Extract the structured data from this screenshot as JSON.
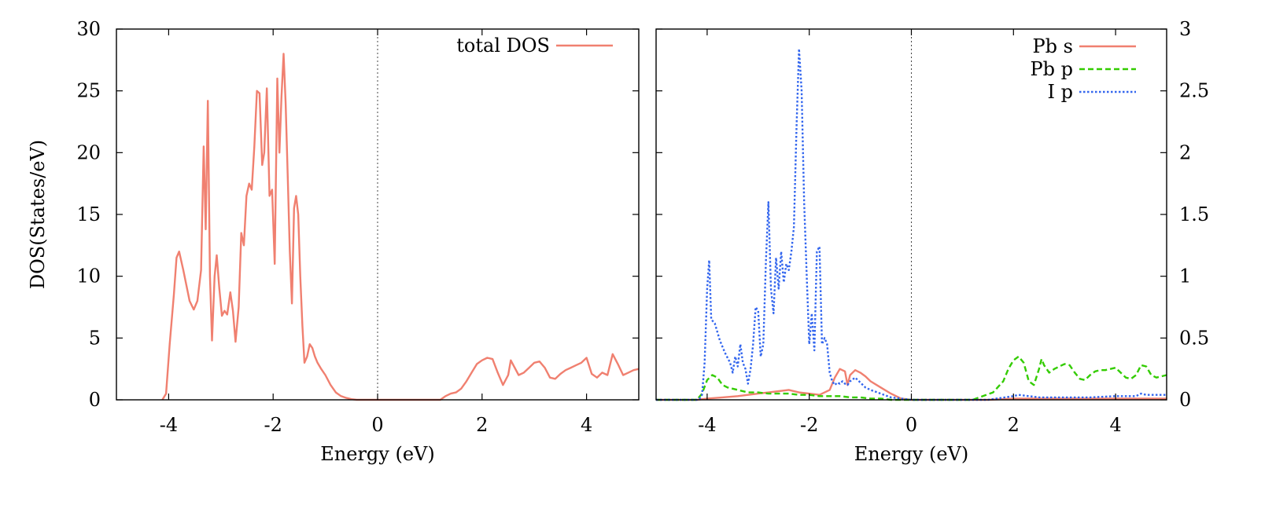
{
  "chart_data": [
    {
      "type": "line",
      "panel": "left",
      "title": "",
      "xlabel": "Energy (eV)",
      "ylabel": "DOS(States/eV)",
      "xlim": [
        -5,
        5
      ],
      "ylim": [
        0,
        30
      ],
      "xticks": [
        -4,
        -2,
        0,
        2,
        4
      ],
      "xtick_labels": [
        "-4",
        "-2",
        "0",
        "2",
        "4"
      ],
      "yticks": [
        0,
        5,
        10,
        15,
        20,
        25,
        30
      ],
      "ytick_labels": [
        "0",
        "5",
        "10",
        "15",
        "20",
        "25",
        "30"
      ],
      "y_axis_side": "left",
      "fermi_level": 0,
      "legend_position": "top-right",
      "series": [
        {
          "name": "total DOS",
          "color": "#f08070",
          "dash": "solid",
          "x": [
            -4.12,
            -4.05,
            -3.98,
            -3.9,
            -3.85,
            -3.8,
            -3.72,
            -3.6,
            -3.52,
            -3.45,
            -3.38,
            -3.33,
            -3.29,
            -3.25,
            -3.21,
            -3.17,
            -3.12,
            -3.08,
            -3.03,
            -2.98,
            -2.93,
            -2.88,
            -2.82,
            -2.77,
            -2.72,
            -2.66,
            -2.61,
            -2.56,
            -2.51,
            -2.46,
            -2.41,
            -2.36,
            -2.31,
            -2.26,
            -2.21,
            -2.17,
            -2.12,
            -2.07,
            -2.02,
            -1.97,
            -1.92,
            -1.88,
            -1.84,
            -1.8,
            -1.76,
            -1.72,
            -1.68,
            -1.64,
            -1.6,
            -1.56,
            -1.52,
            -1.48,
            -1.44,
            -1.4,
            -1.35,
            -1.3,
            -1.25,
            -1.2,
            -1.15,
            -1.08,
            -1.0,
            -0.9,
            -0.8,
            -0.7,
            -0.6,
            -0.5,
            -0.4,
            -0.3,
            -0.2,
            -0.1,
            0.0,
            1.2,
            1.3,
            1.4,
            1.5,
            1.6,
            1.7,
            1.8,
            1.9,
            2.0,
            2.1,
            2.2,
            2.3,
            2.4,
            2.5,
            2.55,
            2.6,
            2.7,
            2.8,
            2.9,
            3.0,
            3.1,
            3.2,
            3.3,
            3.4,
            3.5,
            3.6,
            3.7,
            3.8,
            3.9,
            4.0,
            4.1,
            4.2,
            4.3,
            4.4,
            4.5,
            4.6,
            4.7,
            4.8,
            4.9,
            5.0
          ],
          "values": [
            0,
            0.5,
            4.5,
            8.5,
            11.5,
            12.0,
            10.5,
            8.0,
            7.3,
            8.0,
            10.5,
            20.5,
            13.8,
            24.2,
            10.0,
            4.8,
            10.0,
            11.7,
            9.0,
            6.8,
            7.2,
            6.9,
            8.7,
            7.2,
            4.7,
            7.5,
            13.5,
            12.5,
            16.5,
            17.5,
            17.0,
            20.5,
            25.0,
            24.8,
            19.0,
            20.0,
            25.2,
            16.5,
            17.0,
            11.0,
            26.0,
            20.0,
            24.5,
            28.0,
            24.0,
            18.0,
            12.0,
            7.8,
            15.5,
            16.5,
            15.0,
            10.0,
            6.0,
            3.0,
            3.5,
            4.5,
            4.2,
            3.5,
            3.0,
            2.5,
            2.0,
            1.2,
            0.6,
            0.3,
            0.15,
            0.05,
            0,
            0,
            0,
            0,
            0,
            0,
            0.3,
            0.5,
            0.6,
            0.9,
            1.5,
            2.2,
            2.9,
            3.2,
            3.4,
            3.3,
            2.2,
            1.2,
            2.0,
            3.2,
            2.8,
            2.0,
            2.2,
            2.6,
            3.0,
            3.1,
            2.6,
            1.8,
            1.7,
            2.1,
            2.4,
            2.6,
            2.8,
            3.0,
            3.4,
            2.1,
            1.8,
            2.2,
            2.0,
            3.7,
            2.9,
            2.0,
            2.2,
            2.4,
            2.5
          ]
        }
      ]
    },
    {
      "type": "line",
      "panel": "right",
      "title": "",
      "xlabel": "Energy (eV)",
      "ylabel": "",
      "xlim": [
        -5,
        5
      ],
      "ylim": [
        0,
        3
      ],
      "xticks": [
        -4,
        -2,
        0,
        2,
        4
      ],
      "xtick_labels": [
        "-4",
        "-2",
        "0",
        "2",
        "4"
      ],
      "yticks": [
        0,
        0.5,
        1,
        1.5,
        2,
        2.5,
        3
      ],
      "ytick_labels": [
        "0",
        "0.5",
        "1",
        "1.5",
        "2",
        "2.5",
        "3"
      ],
      "y_axis_side": "right",
      "fermi_level": 0,
      "legend_position": "top-right",
      "series": [
        {
          "name": "Pb s",
          "color": "#f08070",
          "dash": "solid",
          "x": [
            -5.0,
            -4.2,
            -4.0,
            -3.7,
            -3.4,
            -3.2,
            -3.0,
            -2.8,
            -2.6,
            -2.4,
            -2.2,
            -2.0,
            -1.8,
            -1.6,
            -1.5,
            -1.4,
            -1.3,
            -1.25,
            -1.2,
            -1.1,
            -1.0,
            -0.9,
            -0.8,
            -0.6,
            -0.4,
            -0.2,
            0.0,
            1.5,
            2.0,
            2.5,
            3.0,
            3.5,
            4.0,
            4.5,
            5.0
          ],
          "values": [
            0,
            0,
            0.01,
            0.02,
            0.03,
            0.04,
            0.05,
            0.06,
            0.07,
            0.08,
            0.06,
            0.05,
            0.04,
            0.08,
            0.18,
            0.25,
            0.23,
            0.12,
            0.2,
            0.24,
            0.22,
            0.19,
            0.15,
            0.1,
            0.05,
            0.01,
            0,
            0,
            0.01,
            0.01,
            0.01,
            0.01,
            0.01,
            0.01,
            0.01
          ]
        },
        {
          "name": "Pb p",
          "color": "#33cc00",
          "dash": "dashed",
          "x": [
            -5.0,
            -4.2,
            -4.1,
            -4.0,
            -3.9,
            -3.8,
            -3.7,
            -3.6,
            -3.4,
            -3.2,
            -3.0,
            -2.8,
            -2.6,
            -2.4,
            -2.2,
            -2.0,
            -1.8,
            -1.6,
            -1.4,
            -1.2,
            -1.0,
            -0.8,
            -0.6,
            -0.4,
            -0.2,
            0.0,
            1.2,
            1.4,
            1.6,
            1.8,
            1.9,
            2.0,
            2.1,
            2.2,
            2.3,
            2.4,
            2.5,
            2.55,
            2.6,
            2.7,
            2.8,
            2.9,
            3.0,
            3.1,
            3.2,
            3.3,
            3.4,
            3.5,
            3.6,
            3.7,
            3.8,
            3.9,
            4.0,
            4.1,
            4.2,
            4.3,
            4.4,
            4.5,
            4.6,
            4.7,
            4.8,
            4.9,
            5.0
          ],
          "values": [
            0,
            0,
            0.05,
            0.16,
            0.2,
            0.18,
            0.12,
            0.1,
            0.08,
            0.06,
            0.06,
            0.05,
            0.05,
            0.05,
            0.04,
            0.04,
            0.03,
            0.03,
            0.03,
            0.02,
            0.02,
            0.01,
            0.01,
            0,
            0,
            0,
            0,
            0.03,
            0.06,
            0.15,
            0.25,
            0.32,
            0.35,
            0.3,
            0.15,
            0.12,
            0.25,
            0.33,
            0.28,
            0.22,
            0.25,
            0.27,
            0.29,
            0.28,
            0.22,
            0.17,
            0.16,
            0.2,
            0.23,
            0.24,
            0.24,
            0.25,
            0.26,
            0.22,
            0.18,
            0.17,
            0.2,
            0.28,
            0.27,
            0.2,
            0.18,
            0.19,
            0.2
          ]
        },
        {
          "name": "I p",
          "color": "#3366ee",
          "dash": "dotted",
          "x": [
            -5.0,
            -4.2,
            -4.15,
            -4.1,
            -4.05,
            -4.0,
            -3.96,
            -3.92,
            -3.85,
            -3.75,
            -3.65,
            -3.55,
            -3.5,
            -3.45,
            -3.4,
            -3.35,
            -3.3,
            -3.25,
            -3.2,
            -3.15,
            -3.1,
            -3.05,
            -3.0,
            -2.95,
            -2.9,
            -2.85,
            -2.8,
            -2.75,
            -2.7,
            -2.65,
            -2.6,
            -2.55,
            -2.5,
            -2.45,
            -2.4,
            -2.35,
            -2.3,
            -2.25,
            -2.2,
            -2.15,
            -2.1,
            -2.05,
            -2.0,
            -1.95,
            -1.9,
            -1.85,
            -1.8,
            -1.75,
            -1.7,
            -1.65,
            -1.6,
            -1.55,
            -1.5,
            -1.45,
            -1.4,
            -1.35,
            -1.3,
            -1.25,
            -1.2,
            -1.1,
            -1.0,
            -0.9,
            -0.8,
            -0.6,
            -0.4,
            -0.2,
            0.0,
            1.5,
            2.0,
            2.1,
            2.3,
            2.5,
            3.0,
            3.5,
            4.0,
            4.4,
            4.5,
            4.6,
            5.0
          ],
          "values": [
            0,
            0,
            0.01,
            0.04,
            0.3,
            0.9,
            1.13,
            0.65,
            0.62,
            0.48,
            0.38,
            0.3,
            0.22,
            0.35,
            0.27,
            0.45,
            0.3,
            0.25,
            0.13,
            0.25,
            0.45,
            0.75,
            0.72,
            0.35,
            0.45,
            1.1,
            1.6,
            0.9,
            0.7,
            1.15,
            0.9,
            1.2,
            0.95,
            1.1,
            1.05,
            1.2,
            1.4,
            2.2,
            2.84,
            2.5,
            1.6,
            1.0,
            0.45,
            0.7,
            0.4,
            1.2,
            1.24,
            0.45,
            0.5,
            0.45,
            0.22,
            0.15,
            0.12,
            0.14,
            0.13,
            0.15,
            0.13,
            0.12,
            0.15,
            0.18,
            0.14,
            0.1,
            0.08,
            0.05,
            0.02,
            0.01,
            0,
            0,
            0.03,
            0.04,
            0.03,
            0.02,
            0.02,
            0.02,
            0.03,
            0.03,
            0.05,
            0.04,
            0.04
          ]
        }
      ]
    }
  ]
}
